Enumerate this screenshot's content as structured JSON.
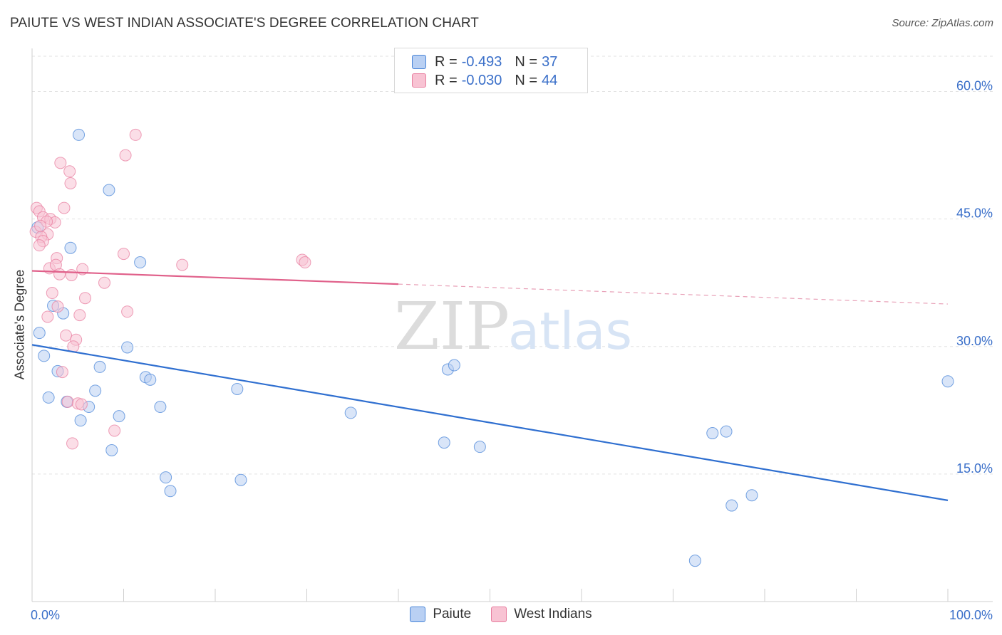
{
  "header": {
    "title": "PAIUTE VS WEST INDIAN ASSOCIATE'S DEGREE CORRELATION CHART",
    "source": "Source: ZipAtlas.com"
  },
  "watermark": {
    "zip": "ZIP",
    "atlas": "atlas"
  },
  "legend": {
    "r_label": "R =",
    "n_label": "N =",
    "rows": [
      {
        "r": "-0.493",
        "n": "37",
        "color": "#4a86d8",
        "fill": "#b9d0f3"
      },
      {
        "r": "-0.030",
        "n": "44",
        "color": "#e87fa0",
        "fill": "#f8c3d3"
      }
    ]
  },
  "bottom_legend": [
    "Paiute",
    "West Indians"
  ],
  "chart_data": {
    "type": "scatter",
    "title": "PAIUTE VS WEST INDIAN ASSOCIATE'S DEGREE CORRELATION CHART",
    "xlabel": "",
    "ylabel": "Associate's Degree",
    "xlim": [
      0,
      100
    ],
    "ylim": [
      0,
      64.9
    ],
    "x_tick_labels": [
      "0.0%",
      "100.0%"
    ],
    "y_ticks": [
      15,
      30,
      45,
      60
    ],
    "y_tick_labels": [
      "15.0%",
      "30.0%",
      "45.0%",
      "60.0%"
    ],
    "grid": true,
    "series": [
      {
        "name": "Paiute",
        "color": "#4a86d8",
        "fill": "#b9d0f3",
        "points": [
          [
            5.1,
            54.9
          ],
          [
            8.4,
            48.4
          ],
          [
            4.2,
            41.6
          ],
          [
            11.8,
            39.9
          ],
          [
            2.3,
            34.8
          ],
          [
            3.4,
            33.9
          ],
          [
            0.8,
            31.6
          ],
          [
            1.3,
            28.9
          ],
          [
            10.4,
            29.9
          ],
          [
            2.8,
            27.1
          ],
          [
            7.4,
            27.6
          ],
          [
            12.4,
            26.4
          ],
          [
            12.9,
            26.1
          ],
          [
            6.9,
            24.8
          ],
          [
            1.8,
            24.0
          ],
          [
            3.8,
            23.5
          ],
          [
            6.2,
            22.9
          ],
          [
            14.0,
            22.9
          ],
          [
            9.5,
            21.8
          ],
          [
            5.3,
            21.3
          ],
          [
            8.7,
            17.8
          ],
          [
            14.6,
            14.6
          ],
          [
            15.1,
            13.0
          ],
          [
            22.4,
            25.0
          ],
          [
            22.8,
            14.3
          ],
          [
            34.8,
            22.2
          ],
          [
            45.4,
            27.3
          ],
          [
            46.1,
            27.8
          ],
          [
            45.0,
            18.7
          ],
          [
            48.9,
            18.2
          ],
          [
            74.3,
            19.8
          ],
          [
            75.8,
            20.0
          ],
          [
            76.4,
            11.3
          ],
          [
            78.6,
            12.5
          ],
          [
            72.4,
            4.8
          ],
          [
            100.0,
            25.9
          ],
          [
            0.6,
            44.0
          ]
        ]
      },
      {
        "name": "West Indians",
        "color": "#e87fa0",
        "fill": "#f8c3d3",
        "points": [
          [
            11.3,
            54.9
          ],
          [
            10.2,
            52.5
          ],
          [
            3.1,
            51.6
          ],
          [
            4.1,
            50.6
          ],
          [
            4.2,
            49.2
          ],
          [
            0.5,
            46.3
          ],
          [
            3.5,
            46.3
          ],
          [
            0.8,
            45.9
          ],
          [
            1.2,
            45.2
          ],
          [
            2.0,
            45.0
          ],
          [
            2.5,
            44.6
          ],
          [
            1.6,
            44.7
          ],
          [
            0.4,
            43.5
          ],
          [
            1.7,
            43.2
          ],
          [
            1.0,
            42.9
          ],
          [
            1.2,
            42.4
          ],
          [
            0.8,
            41.9
          ],
          [
            10.0,
            40.9
          ],
          [
            2.7,
            40.4
          ],
          [
            16.4,
            39.6
          ],
          [
            29.5,
            40.2
          ],
          [
            29.8,
            39.9
          ],
          [
            1.9,
            39.2
          ],
          [
            2.6,
            39.6
          ],
          [
            5.5,
            39.1
          ],
          [
            3.0,
            38.5
          ],
          [
            4.3,
            38.4
          ],
          [
            7.9,
            37.5
          ],
          [
            2.2,
            36.3
          ],
          [
            5.8,
            35.7
          ],
          [
            2.8,
            34.7
          ],
          [
            10.4,
            34.1
          ],
          [
            5.2,
            33.7
          ],
          [
            1.7,
            33.5
          ],
          [
            3.7,
            31.3
          ],
          [
            4.8,
            30.8
          ],
          [
            4.5,
            30.0
          ],
          [
            3.3,
            27.0
          ],
          [
            3.9,
            23.5
          ],
          [
            5.0,
            23.3
          ],
          [
            5.4,
            23.2
          ],
          [
            9.0,
            20.1
          ],
          [
            4.4,
            18.6
          ],
          [
            0.9,
            44.2
          ]
        ]
      }
    ],
    "trend_lines": [
      {
        "series": "Paiute",
        "x0": 0,
        "y0": 30.2,
        "x1": 100,
        "y1": 11.9,
        "dashed_from": null
      },
      {
        "series": "West Indians",
        "x0": 0,
        "y0": 38.9,
        "x1": 100,
        "y1": 35.0,
        "dashed_from": 40
      }
    ]
  }
}
